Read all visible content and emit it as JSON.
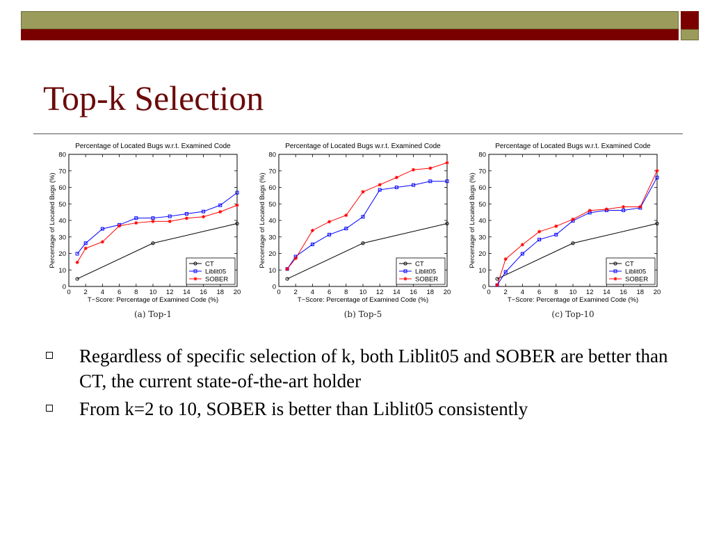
{
  "slide": {
    "title": "Top-k Selection",
    "bullets": [
      "Regardless of specific selection of k, both Liblit05 and SOBER are better than CT, the current state-of-the-art holder",
      "From k=2 to 10, SOBER is better than Liblit05 consistently"
    ],
    "colors": {
      "title": "#6b0a0a",
      "bar_olive": "#9b9b5b",
      "bar_red": "#7a0000"
    }
  },
  "chart_data": [
    {
      "type": "line",
      "title": "Percentage of Located Bugs w.r.t. Examined Code",
      "xlabel": "T−Score: Percentage of Examined Code (%)",
      "ylabel": "Percentage of Located Bugs (%)",
      "caption": "(a) Top-1",
      "xlim": [
        0,
        20
      ],
      "ylim": [
        0,
        80
      ],
      "xticks": [
        0,
        2,
        4,
        6,
        8,
        10,
        12,
        14,
        16,
        18,
        20
      ],
      "yticks": [
        0,
        10,
        20,
        30,
        40,
        50,
        60,
        70,
        80
      ],
      "grid": false,
      "legend_position": "bottom-right",
      "series": [
        {
          "name": "CT",
          "color": "#000000",
          "marker": "circle",
          "x": [
            1,
            10,
            20
          ],
          "y": [
            4.6,
            26.2,
            38.1
          ]
        },
        {
          "name": "Liblit05",
          "color": "#0000ff",
          "marker": "square",
          "x": [
            1,
            2,
            4,
            6,
            8,
            10,
            12,
            14,
            16,
            18,
            20
          ],
          "y": [
            19.8,
            26.2,
            34.9,
            37.3,
            41.4,
            41.4,
            42.5,
            44.0,
            45.4,
            49.2,
            56.8
          ]
        },
        {
          "name": "SOBER",
          "color": "#ff0000",
          "marker": "star",
          "x": [
            1,
            2,
            4,
            6,
            8,
            10,
            12,
            14,
            16,
            18,
            20
          ],
          "y": [
            14.6,
            23.1,
            27.0,
            36.7,
            38.5,
            39.4,
            39.4,
            41.3,
            42.2,
            45.2,
            49.2
          ]
        }
      ]
    },
    {
      "type": "line",
      "title": "Percentage of Located Bugs w.r.t. Examined Code",
      "xlabel": "T−Score: Percentage of Examined Code (%)",
      "ylabel": "Percentage of Located Bugs (%)",
      "caption": "(b) Top-5",
      "xlim": [
        0,
        20
      ],
      "ylim": [
        0,
        80
      ],
      "xticks": [
        0,
        2,
        4,
        6,
        8,
        10,
        12,
        14,
        16,
        18,
        20
      ],
      "yticks": [
        0,
        10,
        20,
        30,
        40,
        50,
        60,
        70,
        80
      ],
      "grid": false,
      "legend_position": "bottom-right",
      "series": [
        {
          "name": "CT",
          "color": "#000000",
          "marker": "circle",
          "x": [
            1,
            10,
            20
          ],
          "y": [
            4.6,
            26.2,
            38.1
          ]
        },
        {
          "name": "Liblit05",
          "color": "#0000ff",
          "marker": "square",
          "x": [
            1,
            2,
            4,
            6,
            8,
            10,
            12,
            14,
            16,
            18,
            20
          ],
          "y": [
            10.6,
            18.1,
            25.5,
            31.4,
            35.1,
            42.2,
            58.5,
            60.0,
            61.4,
            63.7,
            63.7
          ]
        },
        {
          "name": "SOBER",
          "color": "#ff0000",
          "marker": "star",
          "x": [
            1,
            2,
            4,
            6,
            8,
            10,
            12,
            14,
            16,
            18,
            20
          ],
          "y": [
            10.6,
            17.0,
            33.9,
            39.2,
            43.1,
            57.3,
            61.6,
            66.0,
            70.7,
            71.6,
            74.9
          ]
        }
      ]
    },
    {
      "type": "line",
      "title": "Percentage of Located Bugs w.r.t. Examined Code",
      "xlabel": "T−Score: Percentage of Examined Code (%)",
      "ylabel": "Percentage of Located Bugs (%)",
      "caption": "(c) Top-10",
      "xlim": [
        0,
        20
      ],
      "ylim": [
        0,
        80
      ],
      "xticks": [
        0,
        2,
        4,
        6,
        8,
        10,
        12,
        14,
        16,
        18,
        20
      ],
      "yticks": [
        0,
        10,
        20,
        30,
        40,
        50,
        60,
        70,
        80
      ],
      "grid": false,
      "legend_position": "bottom-right",
      "series": [
        {
          "name": "CT",
          "color": "#000000",
          "marker": "circle",
          "x": [
            1,
            10,
            20
          ],
          "y": [
            4.6,
            26.2,
            38.1
          ]
        },
        {
          "name": "Liblit05",
          "color": "#0000ff",
          "marker": "square",
          "x": [
            1,
            2,
            4,
            6,
            8,
            10,
            12,
            14,
            16,
            18,
            20
          ],
          "y": [
            0.8,
            8.8,
            19.8,
            28.4,
            31.4,
            39.8,
            44.7,
            46.1,
            46.1,
            47.6,
            66.0
          ]
        },
        {
          "name": "SOBER",
          "color": "#ff0000",
          "marker": "star",
          "x": [
            1,
            2,
            4,
            6,
            8,
            10,
            12,
            14,
            16,
            18,
            20
          ],
          "y": [
            0.8,
            16.6,
            25.3,
            33.2,
            36.5,
            40.7,
            46.0,
            46.8,
            48.2,
            48.2,
            70.1
          ]
        }
      ]
    }
  ]
}
